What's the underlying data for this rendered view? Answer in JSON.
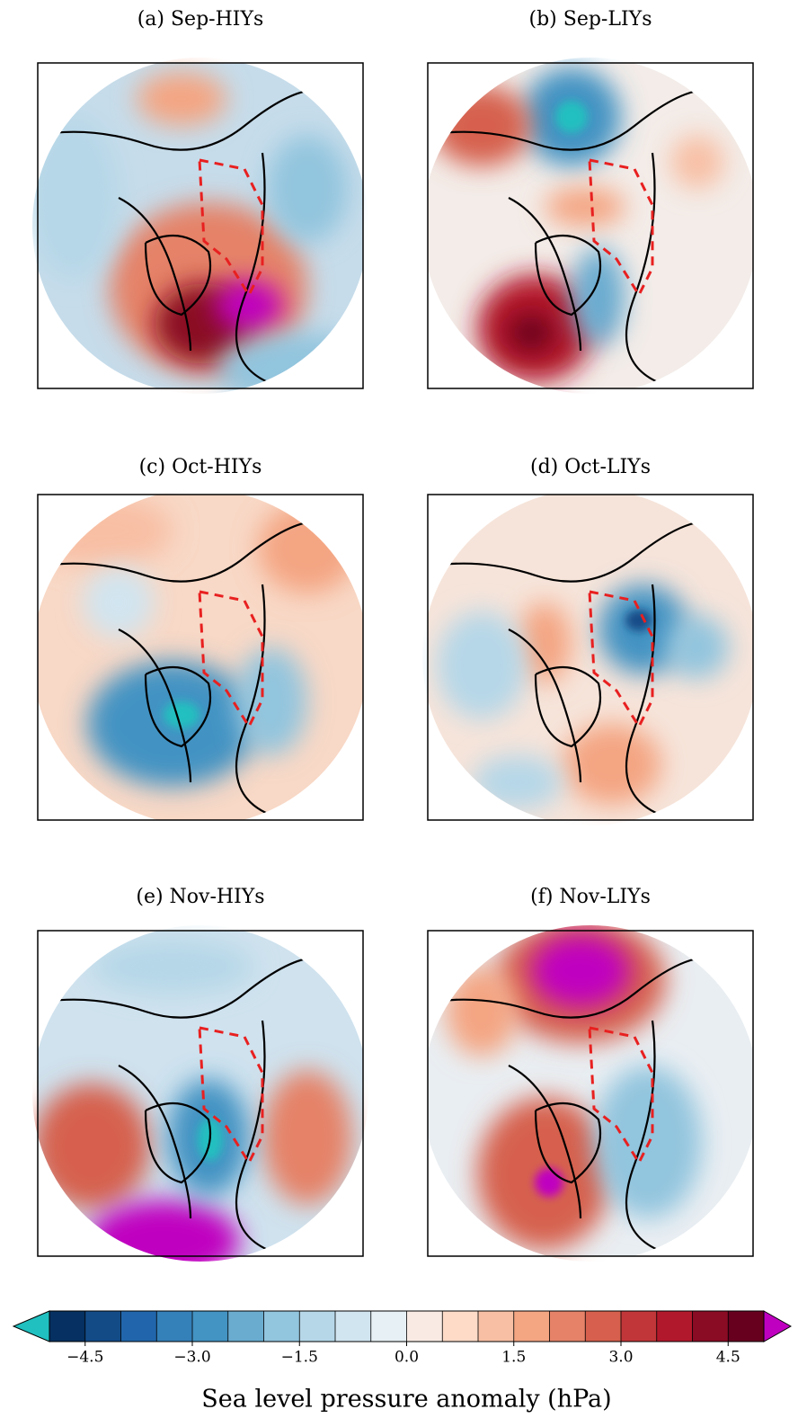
{
  "panels": [
    {
      "title": "(a) Sep-HIYs"
    },
    {
      "title": "(b) Sep-LIYs"
    },
    {
      "title": "(c) Oct-HIYs"
    },
    {
      "title": "(d) Oct-LIYs"
    },
    {
      "title": "(e) Nov-HIYs"
    },
    {
      "title": "(f) Nov-LIYs"
    }
  ],
  "colorbar": {
    "label": "Sea level pressure anomaly (hPa)",
    "xlim": [
      -5,
      5
    ],
    "xticks": [
      {
        "value": -4.5,
        "label": "−4.5"
      },
      {
        "value": -3,
        "label": "−3.0"
      },
      {
        "value": -1.5,
        "label": "−1.5"
      },
      {
        "value": 0,
        "label": "0.0"
      },
      1.5,
      {
        "value": 3,
        "label": "3.0"
      },
      4.5
    ],
    "colors": [
      "#053061",
      "#134b87",
      "#2166ac",
      "#3480b9",
      "#4393c3",
      "#6aacd0",
      "#92c5de",
      "#b5d7e8",
      "#d1e5f0",
      "#e7f0f4",
      "#f9ebe4",
      "#fddbc7",
      "#f8bfa4",
      "#f4a582",
      "#e58268",
      "#d6604d",
      "#c13639",
      "#b2182b",
      "#8a0b24",
      "#67001f"
    ],
    "under_color": "#20c0c0",
    "over_color": "#c000c0"
  }
}
